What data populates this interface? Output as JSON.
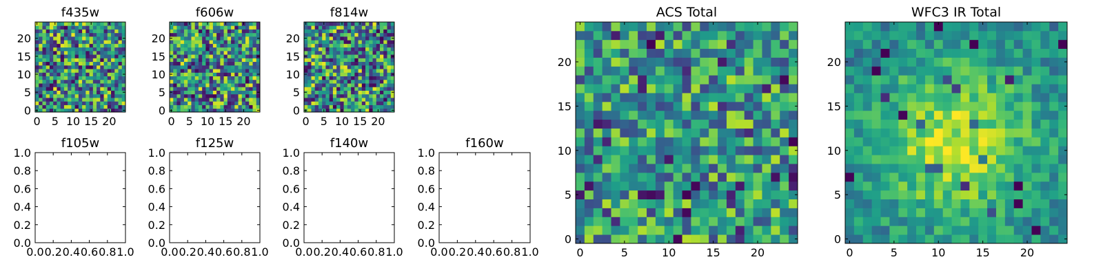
{
  "chart_data": [
    {
      "type": "heatmap",
      "title": "f435w",
      "xlim": [
        -0.5,
        24.5
      ],
      "ylim": [
        -0.5,
        24.5
      ],
      "xticks": [
        0,
        5,
        10,
        15,
        20
      ],
      "yticks": [
        0,
        5,
        10,
        15,
        20
      ],
      "colormap": "viridis",
      "grid_size": [
        25,
        25
      ],
      "pattern": "uniform-noise"
    },
    {
      "type": "heatmap",
      "title": "f606w",
      "xlim": [
        -0.5,
        24.5
      ],
      "ylim": [
        -0.5,
        24.5
      ],
      "xticks": [
        0,
        5,
        10,
        15,
        20
      ],
      "yticks": [
        0,
        5,
        10,
        15,
        20
      ],
      "colormap": "viridis",
      "grid_size": [
        25,
        25
      ],
      "pattern": "uniform-noise"
    },
    {
      "type": "heatmap",
      "title": "f814w",
      "xlim": [
        -0.5,
        24.5
      ],
      "ylim": [
        -0.5,
        24.5
      ],
      "xticks": [
        0,
        5,
        10,
        15,
        20
      ],
      "yticks": [
        0,
        5,
        10,
        15,
        20
      ],
      "colormap": "viridis",
      "grid_size": [
        25,
        25
      ],
      "pattern": "uniform-noise"
    },
    {
      "type": "scatter",
      "title": "f105w",
      "xlim": [
        0,
        1
      ],
      "ylim": [
        0,
        1
      ],
      "xticks": [
        "0.0",
        "0.2",
        "0.4",
        "0.6",
        "0.8",
        "1.0"
      ],
      "yticks": [
        "0.0",
        "0.2",
        "0.4",
        "0.6",
        "0.8",
        "1.0"
      ],
      "series": []
    },
    {
      "type": "scatter",
      "title": "f125w",
      "xlim": [
        0,
        1
      ],
      "ylim": [
        0,
        1
      ],
      "xticks": [
        "0.0",
        "0.2",
        "0.4",
        "0.6",
        "0.8",
        "1.0"
      ],
      "yticks": [
        "0.0",
        "0.2",
        "0.4",
        "0.6",
        "0.8",
        "1.0"
      ],
      "series": []
    },
    {
      "type": "scatter",
      "title": "f140w",
      "xlim": [
        0,
        1
      ],
      "ylim": [
        0,
        1
      ],
      "xticks": [
        "0.0",
        "0.2",
        "0.4",
        "0.6",
        "0.8",
        "1.0"
      ],
      "yticks": [
        "0.0",
        "0.2",
        "0.4",
        "0.6",
        "0.8",
        "1.0"
      ],
      "series": []
    },
    {
      "type": "scatter",
      "title": "f160w",
      "xlim": [
        0,
        1
      ],
      "ylim": [
        0,
        1
      ],
      "xticks": [
        "0.0",
        "0.2",
        "0.4",
        "0.6",
        "0.8",
        "1.0"
      ],
      "yticks": [
        "0.0",
        "0.2",
        "0.4",
        "0.6",
        "0.8",
        "1.0"
      ],
      "series": []
    },
    {
      "type": "heatmap",
      "title": "ACS Total",
      "xlim": [
        -0.5,
        24.5
      ],
      "ylim": [
        -0.5,
        24.5
      ],
      "xticks": [
        0,
        5,
        10,
        15,
        20
      ],
      "yticks": [
        0,
        5,
        10,
        15,
        20
      ],
      "colormap": "viridis",
      "grid_size": [
        25,
        25
      ],
      "pattern": "noise-bright"
    },
    {
      "type": "heatmap",
      "title": "WFC3 IR Total",
      "xlim": [
        -0.5,
        24.5
      ],
      "ylim": [
        -0.5,
        24.5
      ],
      "xticks": [
        0,
        5,
        10,
        15,
        20
      ],
      "yticks": [
        0,
        5,
        10,
        15,
        20
      ],
      "colormap": "viridis",
      "grid_size": [
        25,
        25
      ],
      "pattern": "central-source",
      "peak_pixel": [
        12,
        11
      ]
    }
  ]
}
